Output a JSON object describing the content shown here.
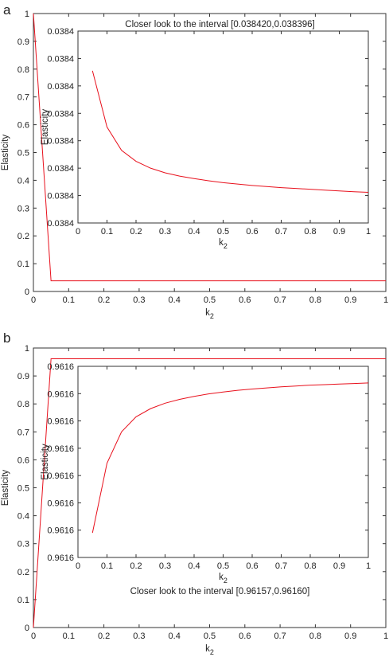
{
  "chart_data": [
    {
      "panel": "a",
      "type": "line",
      "xlabel": "k",
      "xlabel_sub": "2",
      "ylabel": "Elasticity",
      "xlim": [
        0,
        1
      ],
      "ylim": [
        0,
        1
      ],
      "x_ticks": [
        "0",
        "0.1",
        "0.2",
        "0.3",
        "0.4",
        "0.5",
        "0.6",
        "0.7",
        "0.8",
        "0.9",
        "1"
      ],
      "y_ticks": [
        "0",
        "0.1",
        "0.2",
        "0.3",
        "0.4",
        "0.5",
        "0.6",
        "0.7",
        "0.8",
        "0.9",
        "1"
      ],
      "series_color": "#e8101c",
      "series": [
        {
          "x": [
            0,
            0.05,
            0.1,
            0.15,
            0.2,
            0.25,
            0.3,
            0.35,
            0.4,
            0.45,
            0.5,
            0.55,
            0.6,
            0.65,
            0.7,
            0.75,
            0.8,
            0.85,
            0.9,
            0.95,
            1
          ],
          "y": [
            1,
            0.0384,
            0.0384,
            0.0384,
            0.0384,
            0.0384,
            0.0384,
            0.0384,
            0.0384,
            0.0384,
            0.0384,
            0.0384,
            0.0384,
            0.0384,
            0.0384,
            0.0384,
            0.0384,
            0.0384,
            0.0384,
            0.0384,
            0.0384
          ]
        }
      ],
      "inset": {
        "title": "Closer look to the interval [0.038420,0.038396]",
        "xlabel": "k",
        "xlabel_sub": "2",
        "ylabel": "Elasticity",
        "xlim": [
          0,
          1
        ],
        "ylim": [
          0,
          7
        ],
        "x_ticks": [
          "0",
          "0.1",
          "0.2",
          "0.3",
          "0.4",
          "0.5",
          "0.6",
          "0.7",
          "0.8",
          "0.9",
          "1"
        ],
        "y_ticks": [
          "0.0384",
          "0.0384",
          "0.0384",
          "0.0384",
          "0.0384",
          "0.0384",
          "0.0384",
          "0.0384"
        ],
        "series": [
          {
            "x": [
              0.05,
              0.1,
              0.15,
              0.2,
              0.25,
              0.3,
              0.35,
              0.4,
              0.45,
              0.5,
              0.55,
              0.6,
              0.65,
              0.7,
              0.75,
              0.8,
              0.85,
              0.9,
              0.95,
              1
            ],
            "y": [
              5.55,
              3.5,
              2.65,
              2.25,
              2.0,
              1.83,
              1.71,
              1.62,
              1.54,
              1.47,
              1.42,
              1.37,
              1.33,
              1.29,
              1.26,
              1.23,
              1.2,
              1.17,
              1.14,
              1.12
            ]
          }
        ]
      }
    },
    {
      "panel": "b",
      "type": "line",
      "xlabel": "k",
      "xlabel_sub": "2",
      "ylabel": "Elasticity",
      "xlim": [
        0,
        1
      ],
      "ylim": [
        0,
        1
      ],
      "x_ticks": [
        "0",
        "0.1",
        "0.2",
        "0.3",
        "0.4",
        "0.5",
        "0.6",
        "0.7",
        "0.8",
        "0.9",
        "1"
      ],
      "y_ticks": [
        "0",
        "0.1",
        "0.2",
        "0.3",
        "0.4",
        "0.5",
        "0.6",
        "0.7",
        "0.8",
        "0.9",
        "1"
      ],
      "series_color": "#e8101c",
      "series": [
        {
          "x": [
            0,
            0.05,
            0.1,
            0.15,
            0.2,
            0.25,
            0.3,
            0.35,
            0.4,
            0.45,
            0.5,
            0.55,
            0.6,
            0.65,
            0.7,
            0.75,
            0.8,
            0.85,
            0.9,
            0.95,
            1
          ],
          "y": [
            0,
            0.9616,
            0.9616,
            0.9616,
            0.9616,
            0.9616,
            0.9616,
            0.9616,
            0.9616,
            0.9616,
            0.9616,
            0.9616,
            0.9616,
            0.9616,
            0.9616,
            0.9616,
            0.9616,
            0.9616,
            0.9616,
            0.9616,
            0.9616
          ]
        }
      ],
      "inset": {
        "title": "Closer look to the interval [0.96157,0.96160]",
        "xlabel": "k",
        "xlabel_sub": "2",
        "ylabel": "Elasticity",
        "xlim": [
          0,
          1
        ],
        "ylim": [
          0,
          7
        ],
        "x_ticks": [
          "0",
          "0.1",
          "0.2",
          "0.3",
          "0.4",
          "0.5",
          "0.6",
          "0.7",
          "0.8",
          "0.9",
          "1"
        ],
        "y_ticks": [
          "0.9616",
          "0.9616",
          "0.9616",
          "0.9616",
          "0.9616",
          "0.9616",
          "0.9616",
          "0.9616"
        ],
        "series": [
          {
            "x": [
              0.05,
              0.1,
              0.15,
              0.2,
              0.25,
              0.3,
              0.35,
              0.4,
              0.45,
              0.5,
              0.55,
              0.6,
              0.65,
              0.7,
              0.75,
              0.8,
              0.85,
              0.9,
              0.95,
              1
            ],
            "y": [
              0.9,
              3.45,
              4.6,
              5.15,
              5.45,
              5.65,
              5.79,
              5.9,
              5.99,
              6.06,
              6.12,
              6.17,
              6.21,
              6.25,
              6.28,
              6.31,
              6.33,
              6.35,
              6.37,
              6.39
            ]
          }
        ]
      }
    }
  ]
}
